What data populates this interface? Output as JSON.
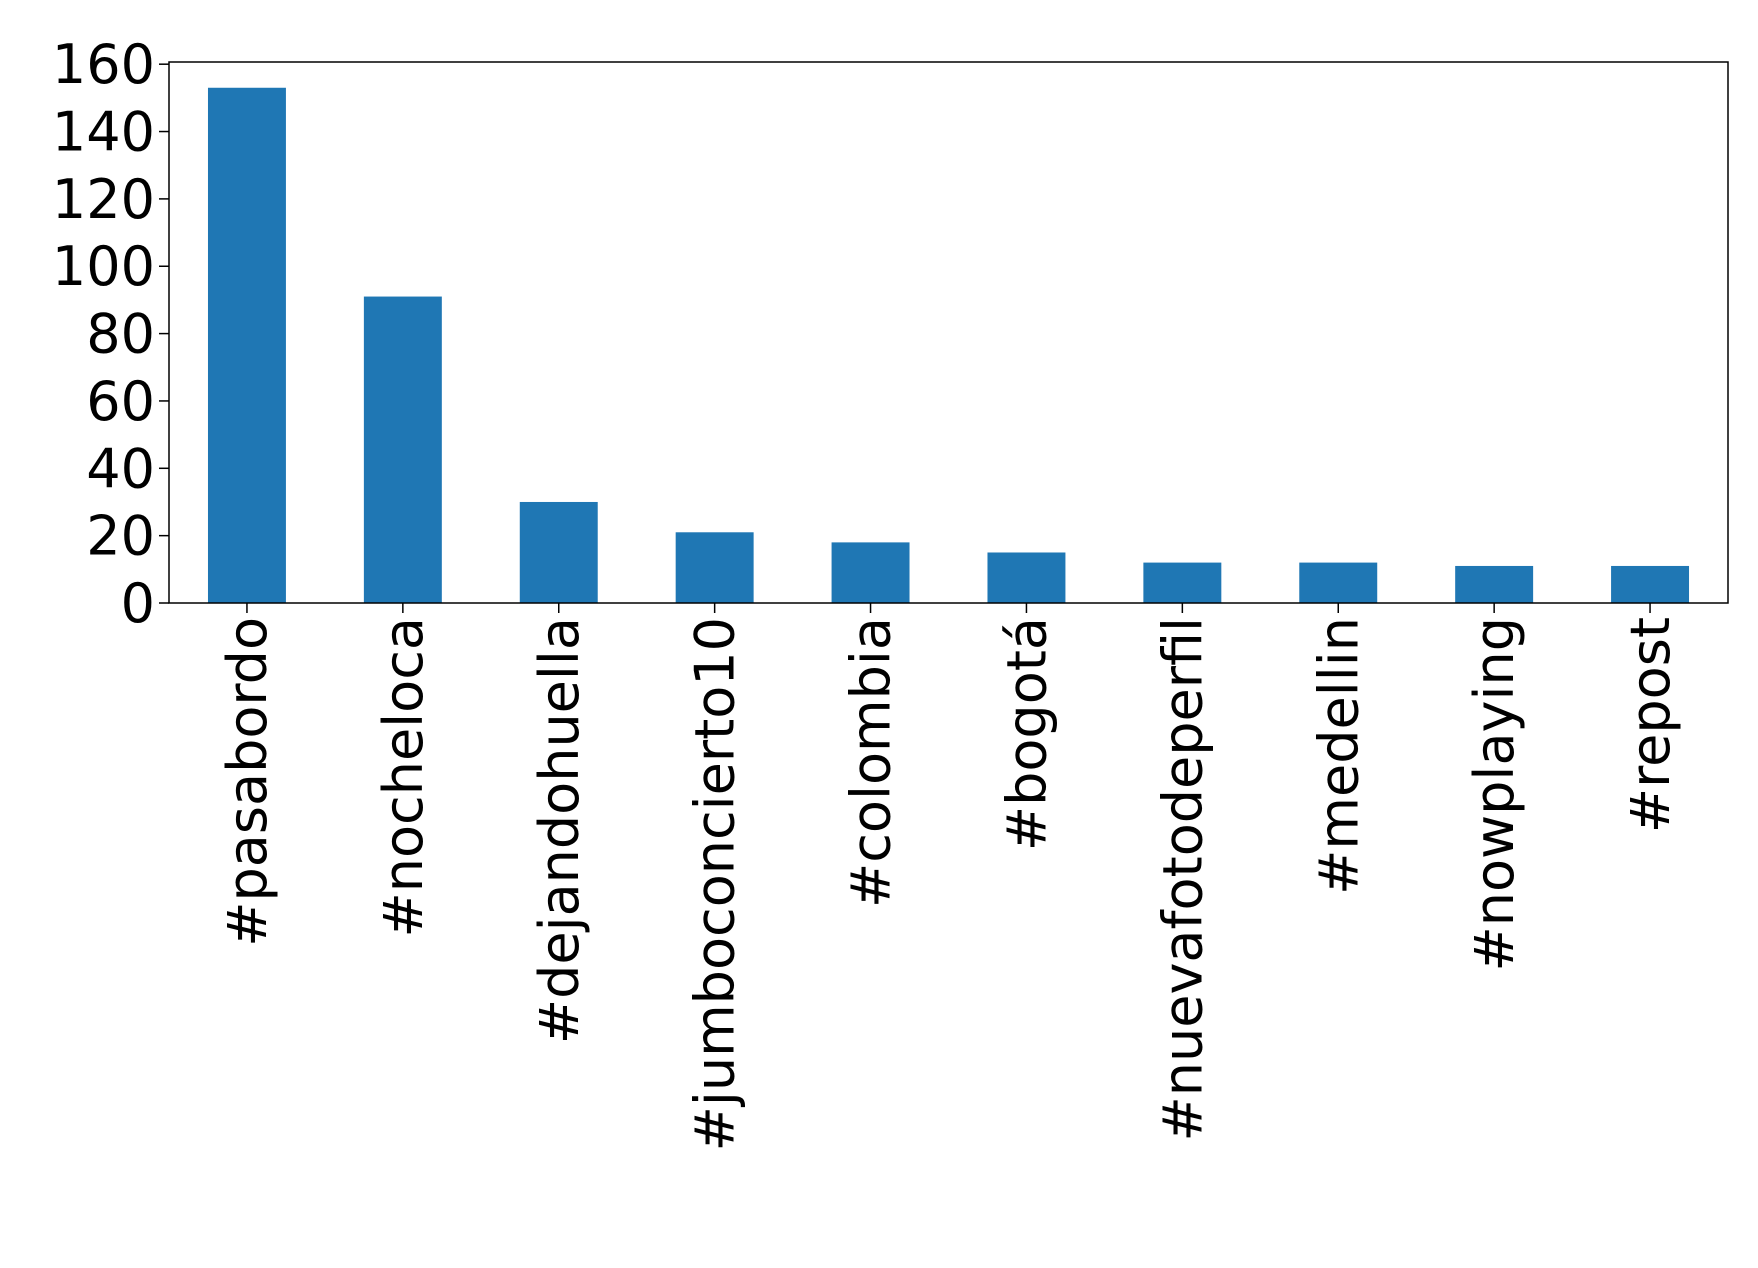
{
  "chart_data": {
    "type": "bar",
    "categories": [
      "#pasabordo",
      "#nocheloca",
      "#dejandohuella",
      "#jumboconcierto10",
      "#colombia",
      "#bogotá",
      "#nuevafotodeperfil",
      "#medellin",
      "#nowplaying",
      "#repost"
    ],
    "values": [
      153,
      91,
      30,
      21,
      18,
      15,
      12,
      12,
      11,
      11
    ],
    "color": "#1f77b4",
    "ylim": [
      0,
      160.65
    ],
    "yticks": [
      0,
      20,
      40,
      60,
      80,
      100,
      120,
      140,
      160
    ],
    "grid": false
  }
}
